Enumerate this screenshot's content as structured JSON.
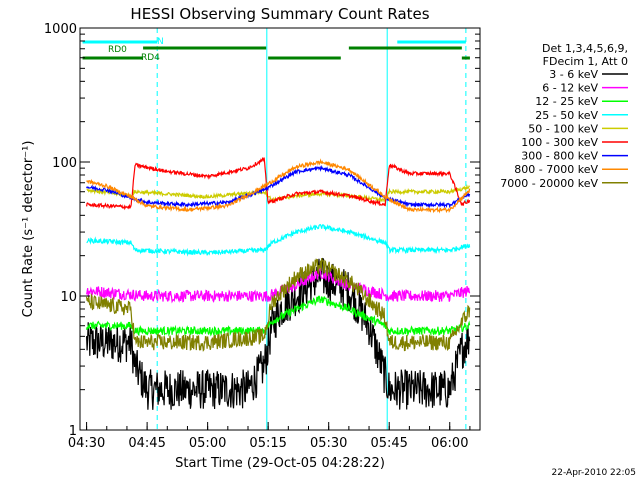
{
  "chart_data": {
    "type": "line",
    "title": "HESSI Observing Summary Count Rates",
    "xlabel": "Start Time (29-Oct-05 04:28:22)",
    "ylabel": "Count Rate (s⁻¹ detector⁻¹)",
    "y_scale": "log",
    "ylim": [
      1,
      1000
    ],
    "xlim": [
      "04:28:22",
      "06:07:30"
    ],
    "x_tick_labels": [
      "04:30",
      "04:45",
      "05:00",
      "05:15",
      "05:30",
      "05:45",
      "06:00"
    ],
    "y_tick_labels": [
      "1",
      "10",
      "100",
      "1000"
    ],
    "grid": false,
    "legend_position": "right",
    "legend_title_lines": [
      "Det 1,3,4,5,6,9,",
      "FDecim 1, Att 0"
    ],
    "series": [
      {
        "name": "3 - 6 keV",
        "color": "#000000",
        "x": [
          "04:30",
          "04:41",
          "04:42",
          "04:45",
          "04:50",
          "05:00",
          "05:10",
          "05:14",
          "05:16",
          "05:18",
          "05:25",
          "05:28",
          "05:35",
          "05:40",
          "05:45",
          "05:50",
          "05:55",
          "06:00",
          "06:03",
          "06:05"
        ],
        "values": [
          4.5,
          4.5,
          3,
          2,
          2,
          2,
          2,
          3,
          6,
          8,
          12,
          14,
          11,
          6,
          2,
          2,
          2,
          2,
          4,
          5
        ]
      },
      {
        "name": "6 - 12 keV",
        "color": "#ff00ff",
        "x": [
          "04:30",
          "04:45",
          "05:00",
          "05:15",
          "05:22",
          "05:28",
          "05:35",
          "05:45",
          "06:00",
          "06:05"
        ],
        "values": [
          11,
          10,
          10,
          10,
          12,
          15,
          12,
          10,
          10,
          11
        ]
      },
      {
        "name": "12 - 25 keV",
        "color": "#00ff00",
        "x": [
          "04:30",
          "04:41",
          "04:42",
          "05:00",
          "05:14",
          "05:16",
          "05:22",
          "05:28",
          "05:35",
          "05:44",
          "05:45",
          "06:00",
          "06:05"
        ],
        "values": [
          6,
          6,
          5.5,
          5.5,
          5.5,
          6.5,
          8,
          9.5,
          8,
          6,
          5.5,
          5.5,
          6
        ]
      },
      {
        "name": "25 - 50 keV",
        "color": "#00ffff",
        "x": [
          "04:30",
          "04:41",
          "04:42",
          "05:00",
          "05:14",
          "05:16",
          "05:22",
          "05:28",
          "05:35",
          "05:44",
          "05:45",
          "06:00",
          "06:05"
        ],
        "values": [
          26,
          25,
          22,
          21,
          22,
          25,
          30,
          33,
          30,
          25,
          22,
          22,
          24
        ]
      },
      {
        "name": "50 - 100 keV",
        "color": "#cccc00",
        "x": [
          "04:30",
          "04:41",
          "04:42",
          "05:00",
          "05:14",
          "05:16",
          "05:22",
          "05:28",
          "05:35",
          "05:44",
          "05:45",
          "06:00",
          "06:05"
        ],
        "values": [
          62,
          56,
          60,
          55,
          60,
          52,
          56,
          58,
          56,
          52,
          60,
          60,
          65
        ]
      },
      {
        "name": "100 - 300 keV",
        "color": "#ff0000",
        "x": [
          "04:30",
          "04:41",
          "04:42",
          "04:50",
          "05:00",
          "05:10",
          "05:14",
          "05:15",
          "05:22",
          "05:28",
          "05:35",
          "05:44",
          "05:45",
          "05:50",
          "06:00",
          "06:03",
          "06:05"
        ],
        "values": [
          48,
          46,
          95,
          85,
          78,
          90,
          105,
          50,
          58,
          60,
          56,
          48,
          95,
          82,
          82,
          48,
          52
        ]
      },
      {
        "name": "300 - 800 keV",
        "color": "#0000ff",
        "x": [
          "04:30",
          "04:35",
          "04:41",
          "04:45",
          "04:55",
          "05:05",
          "05:14",
          "05:22",
          "05:28",
          "05:35",
          "05:44",
          "05:50",
          "06:00",
          "06:05"
        ],
        "values": [
          65,
          62,
          54,
          50,
          48,
          50,
          62,
          85,
          90,
          80,
          54,
          48,
          48,
          58
        ]
      },
      {
        "name": "800 - 7000 keV",
        "color": "#ff8800",
        "x": [
          "04:30",
          "04:35",
          "04:41",
          "04:45",
          "04:55",
          "05:05",
          "05:14",
          "05:22",
          "05:28",
          "05:35",
          "05:44",
          "05:50",
          "06:00",
          "06:05"
        ],
        "values": [
          72,
          66,
          55,
          47,
          44,
          47,
          66,
          92,
          100,
          88,
          55,
          44,
          44,
          62
        ]
      },
      {
        "name": "7000 - 20000 keV",
        "color": "#808000",
        "x": [
          "04:30",
          "04:41",
          "04:42",
          "05:00",
          "05:14",
          "05:16",
          "05:22",
          "05:28",
          "05:35",
          "05:44",
          "05:45",
          "06:00",
          "06:05"
        ],
        "values": [
          9,
          8,
          4.5,
          4.5,
          5,
          9,
          14,
          17,
          13,
          7,
          4.5,
          4.5,
          8
        ]
      }
    ],
    "flag_bars": [
      {
        "label": "N",
        "color": "#00ffff",
        "segments": [
          [
            "04:29",
            "04:47:30"
          ],
          [
            "05:47",
            "06:04"
          ]
        ]
      },
      {
        "label": "RD0",
        "color": "#008000",
        "segments": [
          [
            "04:44",
            "05:14:30"
          ],
          [
            "05:35",
            "06:03"
          ]
        ]
      },
      {
        "label": "RD4",
        "color": "#008000",
        "segments": [
          [
            "04:29",
            "04:44"
          ],
          [
            "05:15",
            "05:33"
          ],
          [
            "06:03",
            "06:05"
          ]
        ]
      }
    ],
    "vertical_lines": [
      {
        "x": "04:47:30",
        "style": "dashed",
        "color": "#00ffff"
      },
      {
        "x": "05:14:40",
        "style": "solid",
        "color": "#00ffff"
      },
      {
        "x": "05:44:30",
        "style": "solid",
        "color": "#00ffff"
      },
      {
        "x": "06:04",
        "style": "dashed",
        "color": "#00ffff"
      }
    ]
  },
  "footer_timestamp": "22-Apr-2010 22:05"
}
